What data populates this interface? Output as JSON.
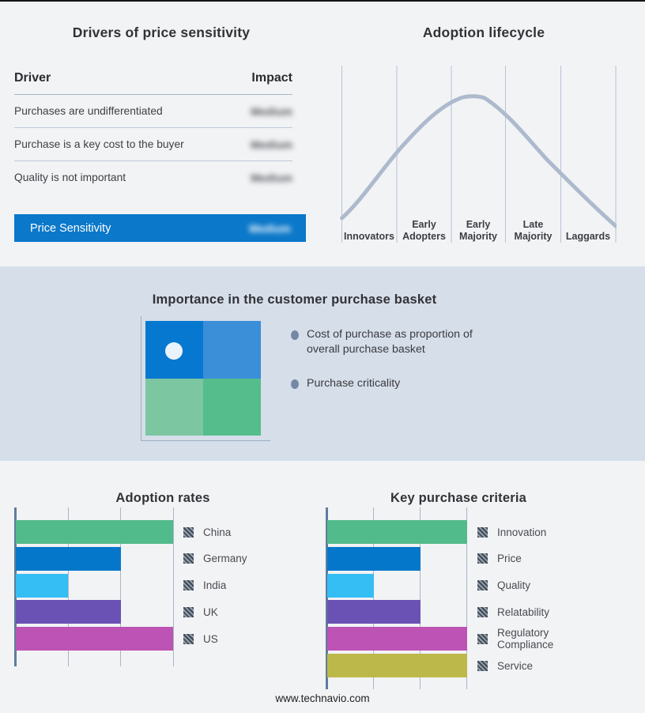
{
  "page": {
    "footer": "www.technavio.com"
  },
  "colors": {
    "page_bg": "#f2f3f5",
    "band_bg": "#d5dee9",
    "highlight_row_bg": "#0b78c9",
    "curve": "#adbacd",
    "gridline": "#a9b6c6",
    "axis": "#5d7d9d"
  },
  "drivers_panel": {
    "title": "Drivers of price sensitivity",
    "columns": {
      "driver": "Driver",
      "impact": "Impact"
    },
    "rows": [
      {
        "driver": "Purchases are undifferentiated",
        "impact": "Medium"
      },
      {
        "driver": "Purchase is a key cost to the buyer",
        "impact": "Medium"
      },
      {
        "driver": "Quality is not important",
        "impact": "Medium"
      }
    ],
    "highlight_row": {
      "driver": "Price Sensitivity",
      "impact": "Medium"
    }
  },
  "lifecycle_panel": {
    "title": "Adoption lifecycle",
    "stages": [
      "Innovators",
      "Early Adopters",
      "Early Majority",
      "Late Majority",
      "Laggards"
    ]
  },
  "basket_panel": {
    "title": "Importance in the customer purchase basket",
    "quadrant_colors": [
      "#0678d0",
      "#3b8ed8",
      "#7cc6a2",
      "#54bd8b"
    ],
    "bullets": [
      "Cost of purchase as proportion of overall purchase basket",
      "Purchase criticality"
    ]
  },
  "chart_data": [
    {
      "type": "bar",
      "title": "Adoption rates",
      "orientation": "horizontal",
      "categories": [
        "China",
        "Germany",
        "India",
        "UK",
        "US"
      ],
      "values": [
        3,
        2,
        1,
        2,
        3
      ],
      "colors": [
        "#52bb8b",
        "#0477ca",
        "#35bef3",
        "#6a52b5",
        "#bd53b4"
      ],
      "xlim": [
        0,
        3
      ],
      "grid": true,
      "legend_position": "right"
    },
    {
      "type": "bar",
      "title": "Key purchase criteria",
      "orientation": "horizontal",
      "categories": [
        "Innovation",
        "Price",
        "Quality",
        "Relatability",
        "Regulatory Compliance",
        "Service"
      ],
      "values": [
        3,
        2,
        1,
        2,
        3,
        3
      ],
      "colors": [
        "#52bb8b",
        "#0477ca",
        "#35bef3",
        "#6a52b5",
        "#bd53b4",
        "#bdb84a"
      ],
      "xlim": [
        0,
        3
      ],
      "grid": true,
      "legend_position": "right"
    }
  ]
}
